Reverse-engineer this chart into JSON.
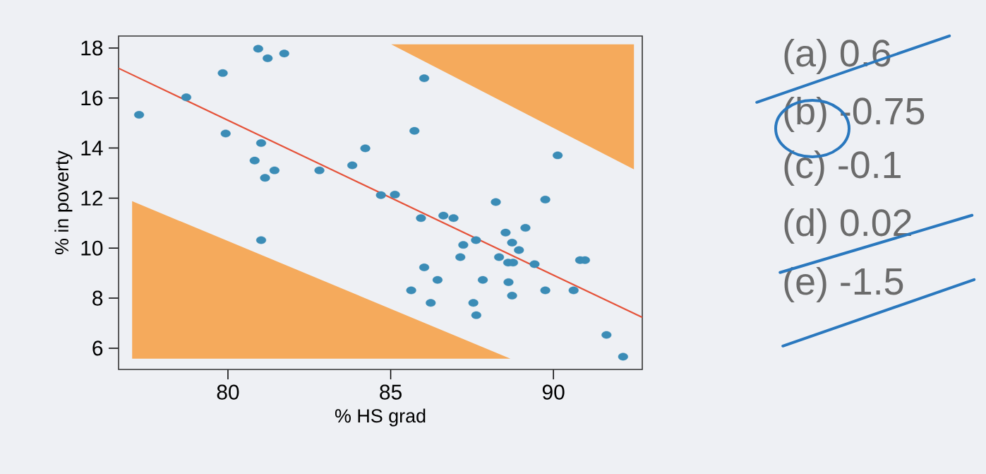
{
  "chart_data": {
    "type": "scatter",
    "xlabel": "% HS grad",
    "ylabel": "% in poverty",
    "xlim": [
      76.64,
      92.73
    ],
    "ylim": [
      5.15,
      18.48
    ],
    "xticks": [
      80,
      85,
      90
    ],
    "yticks": [
      6,
      8,
      10,
      12,
      14,
      16,
      18
    ],
    "grid": false,
    "marker": "circle",
    "series": [
      {
        "type": "line",
        "color": "#e5533a",
        "line_style": "solid",
        "marker": "none",
        "x": [
          76.64,
          92.73
        ],
        "values": [
          17.19,
          7.23
        ]
      },
      {
        "color": "#3b8cb6",
        "x": [
          77.27,
          78.72,
          79.84,
          79.93,
          80.93,
          81.22,
          81.73,
          81.02,
          80.82,
          81.43,
          81.14,
          82.81,
          83.82,
          84.22,
          84.7,
          81.02,
          86.03,
          85.73,
          90.13,
          85.13,
          88.23,
          89.75,
          85.93,
          86.62,
          86.93,
          89.14,
          88.53,
          87.62,
          87.23,
          88.73,
          88.94,
          87.14,
          88.33,
          88.61,
          88.76,
          89.42,
          90.82,
          90.97,
          86.03,
          86.44,
          87.83,
          88.62,
          85.63,
          89.75,
          90.62,
          88.73,
          86.23,
          87.54,
          87.63,
          91.63,
          92.14
        ],
        "values": [
          15.33,
          16.03,
          17.0,
          14.58,
          17.97,
          17.59,
          17.78,
          14.2,
          13.5,
          13.11,
          12.81,
          13.11,
          13.31,
          13.99,
          12.12,
          10.32,
          16.79,
          14.69,
          13.71,
          12.14,
          11.84,
          11.94,
          11.2,
          11.3,
          11.2,
          10.81,
          10.62,
          10.32,
          10.13,
          10.22,
          9.92,
          9.64,
          9.64,
          9.42,
          9.42,
          9.36,
          9.52,
          9.52,
          9.23,
          8.73,
          8.73,
          8.64,
          8.31,
          8.31,
          8.31,
          8.1,
          7.81,
          7.81,
          7.32,
          6.53,
          5.66
        ]
      }
    ],
    "annotations": [
      "(a) 0.6",
      "(b) -0.75",
      "(c) -0.1",
      "(d) 0.02",
      "(e) -1.5"
    ]
  }
}
